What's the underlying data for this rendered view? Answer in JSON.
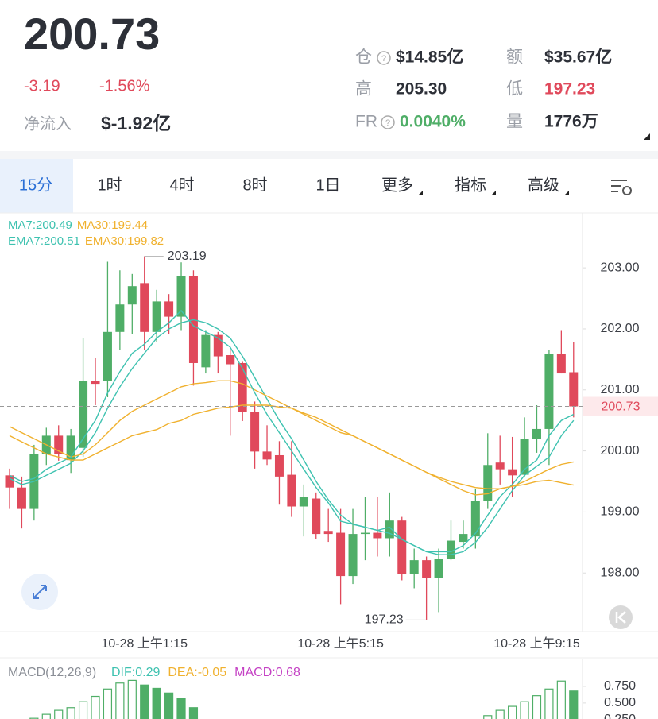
{
  "header": {
    "price": "200.73",
    "change": "-3.19",
    "change_pct": "-1.56%",
    "net_flow_label": "净流入",
    "net_flow": "$-1.92亿",
    "stats": [
      {
        "label": "仓",
        "value": "$14.85亿"
      },
      {
        "label": "额",
        "value": "$35.67亿"
      },
      {
        "label": "高",
        "value": "205.30"
      },
      {
        "label": "低",
        "value": "197.23"
      },
      {
        "label": "FR",
        "value": "0.0040%"
      },
      {
        "label": "量",
        "value": "1776万"
      }
    ]
  },
  "tabs": [
    "15分",
    "1时",
    "4时",
    "8时",
    "1日",
    "更多",
    "指标",
    "高级"
  ],
  "chart_data": [
    {
      "type": "candlestick",
      "categories": [
        null,
        null,
        null,
        null,
        null,
        null,
        null,
        null,
        null,
        null,
        null,
        "10-28 上午1:15",
        null,
        null,
        null,
        null,
        null,
        null,
        null,
        null,
        null,
        null,
        null,
        null,
        null,
        null,
        null,
        "10-28 上午5:15",
        null,
        null,
        null,
        null,
        null,
        null,
        null,
        null,
        null,
        null,
        null,
        null,
        null,
        null,
        null,
        "10-28 上午9:15",
        null,
        null,
        null
      ],
      "open": [
        199.6,
        199.4,
        199.05,
        199.95,
        200.25,
        199.85,
        200.05,
        201.15,
        201.15,
        201.95,
        202.4,
        202.75,
        201.95,
        202.45,
        202.2,
        202.87,
        201.37,
        201.9,
        201.57,
        201.44,
        200.64,
        199.99,
        199.93,
        199.61,
        199.09,
        199.22,
        198.69,
        198.66,
        197.95,
        198.64,
        198.66,
        198.57,
        198.86,
        197.99,
        198.21,
        197.92,
        198.23,
        198.51,
        198.6,
        199.18,
        199.81,
        199.7,
        199.61,
        200.2,
        200.36,
        201.59,
        201.29
      ],
      "high": [
        199.71,
        199.58,
        200.1,
        200.38,
        200.42,
        200.36,
        201.85,
        201.53,
        203.1,
        202.96,
        202.9,
        203.19,
        202.64,
        202.57,
        203.09,
        202.96,
        201.98,
        201.95,
        201.66,
        201.46,
        200.81,
        200.42,
        200.16,
        200.16,
        199.45,
        199.32,
        199.05,
        199.05,
        199.05,
        199.25,
        199.25,
        199.32,
        198.92,
        198.4,
        198.27,
        198.4,
        198.86,
        198.86,
        199.38,
        200.29,
        200.25,
        200.23,
        200.55,
        200.75,
        201.66,
        201.98,
        201.79
      ],
      "low": [
        199.05,
        198.73,
        198.86,
        199.77,
        199.84,
        199.64,
        199.9,
        200.75,
        200.88,
        201.66,
        201.92,
        201.66,
        201.79,
        201.92,
        201.98,
        201.07,
        201.27,
        201.27,
        200.25,
        200.49,
        199.71,
        199.77,
        199.12,
        198.92,
        198.6,
        198.56,
        198.51,
        197.49,
        197.82,
        198.21,
        198.27,
        198.27,
        197.88,
        197.75,
        197.23,
        197.36,
        198.21,
        198.4,
        198.4,
        199.05,
        199.45,
        199.25,
        199.58,
        199.97,
        199.77,
        201.27,
        200.55
      ],
      "close": [
        199.4,
        199.05,
        199.95,
        200.25,
        199.95,
        200.25,
        201.15,
        201.1,
        201.95,
        202.4,
        202.7,
        201.95,
        202.45,
        202.2,
        202.87,
        201.44,
        201.9,
        201.55,
        201.42,
        200.64,
        199.99,
        199.86,
        199.58,
        199.09,
        199.25,
        198.64,
        198.64,
        197.95,
        198.64,
        198.66,
        198.57,
        198.86,
        197.99,
        198.21,
        197.92,
        198.23,
        198.53,
        198.64,
        199.18,
        199.77,
        199.7,
        199.6,
        200.2,
        200.36,
        201.59,
        201.27,
        200.73
      ],
      "up_color": "#4fae67",
      "down_color": "#e0495b",
      "series": [
        {
          "name": "MA7:200.49",
          "color": "#3ec2b0",
          "values": [
            199.55,
            199.45,
            199.5,
            199.6,
            199.7,
            199.8,
            200.0,
            200.3,
            200.7,
            201.05,
            201.35,
            201.6,
            201.85,
            202.0,
            202.1,
            202.15,
            202.1,
            202.0,
            201.85,
            201.55,
            201.2,
            200.85,
            200.5,
            200.2,
            199.85,
            199.5,
            199.2,
            198.95,
            198.8,
            198.75,
            198.7,
            198.65,
            198.55,
            198.45,
            198.35,
            198.3,
            198.3,
            198.35,
            198.5,
            198.75,
            199.05,
            199.35,
            199.6,
            199.75,
            199.9,
            200.25,
            200.5
          ]
        },
        {
          "name": "MA30:199.44",
          "color": "#f0b12e",
          "values": [
            200.4,
            200.3,
            200.2,
            200.1,
            200.0,
            199.9,
            199.95,
            200.1,
            200.3,
            200.5,
            200.65,
            200.75,
            200.85,
            200.95,
            201.05,
            201.1,
            201.12,
            201.15,
            201.15,
            201.1,
            201.0,
            200.9,
            200.8,
            200.7,
            200.6,
            200.5,
            200.4,
            200.3,
            200.25,
            200.15,
            200.05,
            199.95,
            199.85,
            199.75,
            199.65,
            199.55,
            199.45,
            199.35,
            199.28,
            199.3,
            199.38,
            199.42,
            199.45,
            199.5,
            199.52,
            199.48,
            199.44
          ]
        },
        {
          "name": "EMA7:200.51",
          "color": "#3ec2b0",
          "values": [
            199.6,
            199.5,
            199.55,
            199.7,
            199.8,
            199.9,
            200.2,
            200.5,
            200.95,
            201.3,
            201.6,
            201.75,
            201.95,
            202.1,
            202.3,
            202.05,
            201.95,
            201.85,
            201.7,
            201.35,
            200.95,
            200.6,
            200.3,
            200.0,
            199.7,
            199.4,
            199.15,
            198.85,
            198.8,
            198.75,
            198.7,
            198.75,
            198.55,
            198.45,
            198.35,
            198.35,
            198.35,
            198.45,
            198.65,
            198.95,
            199.25,
            199.45,
            199.7,
            199.85,
            200.25,
            200.5,
            200.6
          ]
        },
        {
          "name": "EMA30:199.82",
          "color": "#f0b12e",
          "values": [
            200.25,
            200.15,
            200.05,
            199.95,
            199.9,
            199.85,
            199.85,
            199.95,
            200.05,
            200.15,
            200.25,
            200.3,
            200.35,
            200.45,
            200.5,
            200.6,
            200.65,
            200.7,
            200.72,
            200.75,
            200.75,
            200.75,
            200.72,
            200.7,
            200.62,
            200.55,
            200.45,
            200.35,
            200.25,
            200.15,
            200.05,
            199.95,
            199.85,
            199.75,
            199.65,
            199.57,
            199.5,
            199.45,
            199.4,
            199.38,
            199.38,
            199.42,
            199.5,
            199.6,
            199.7,
            199.78,
            199.82
          ]
        }
      ],
      "ylim": [
        197.04,
        203.9
      ],
      "yticks": [
        {
          "value": 198,
          "label": "198.00"
        },
        {
          "value": 199,
          "label": "199.00"
        },
        {
          "value": 200,
          "label": "200.00"
        },
        {
          "value": 201,
          "label": "201.00"
        },
        {
          "value": 202,
          "label": "202.00"
        },
        {
          "value": 203,
          "label": "203.00"
        }
      ],
      "last_price": {
        "value": 200.73,
        "label": "200.73"
      },
      "high_label": {
        "value": 203.19,
        "label": "203.19"
      },
      "low_label": {
        "value": 197.23,
        "label": "197.23"
      }
    },
    {
      "type": "bar",
      "title": "MACD(12,26,9)",
      "legend": [
        {
          "label": "DIF:0.29",
          "color": "#3ec2b0"
        },
        {
          "label": "DEA:-0.05",
          "color": "#f0b12e"
        },
        {
          "label": "MACD:0.68",
          "color": "#c441c4"
        }
      ],
      "color": "#4fae67",
      "values": [
        null,
        null,
        0.27,
        0.33,
        0.39,
        0.43,
        0.52,
        0.6,
        0.71,
        0.8,
        0.84,
        0.77,
        0.72,
        0.65,
        0.57,
        0.43,
        null,
        null,
        null,
        null,
        null,
        null,
        null,
        null,
        null,
        null,
        null,
        null,
        null,
        null,
        null,
        null,
        null,
        null,
        null,
        null,
        null,
        null,
        null,
        0.31,
        0.39,
        0.45,
        0.52,
        0.61,
        0.71,
        0.83,
        0.68
      ],
      "ylim": [
        0.26,
        1.155
      ],
      "yticks": [
        {
          "value": 0.75,
          "label": "0.750"
        },
        {
          "value": 0.5,
          "label": "0.500"
        },
        {
          "value": 0.25,
          "label": "0.250"
        }
      ]
    }
  ]
}
